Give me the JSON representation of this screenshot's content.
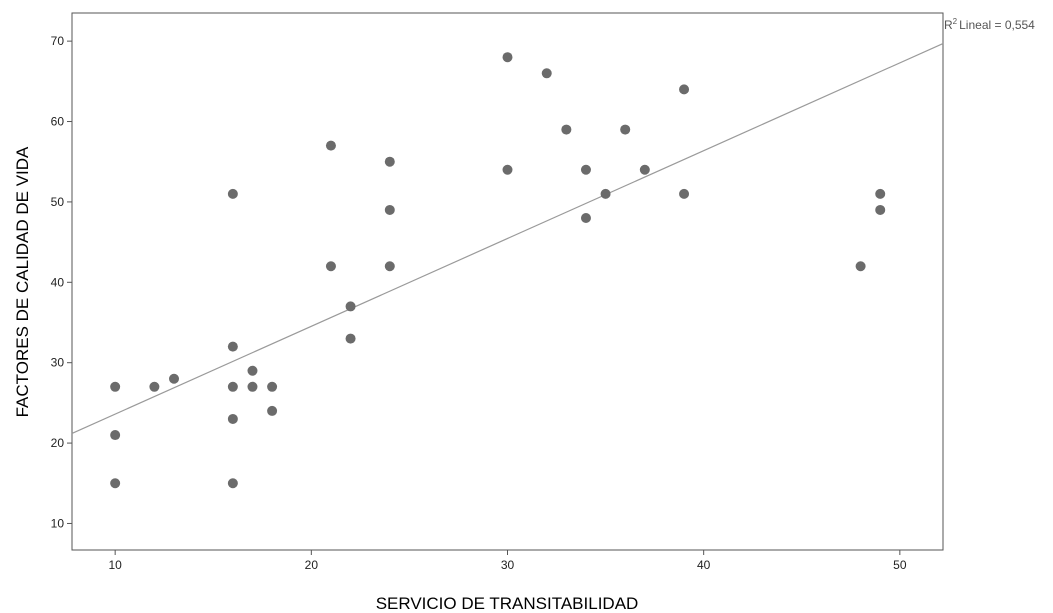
{
  "chart_data": {
    "type": "scatter",
    "xlabel": "SERVICIO DE TRANSITABILIDAD",
    "ylabel": "FACTORES DE CALIDAD DE VIDA",
    "xlim": [
      7.8,
      52.2
    ],
    "ylim": [
      6.7,
      73.5
    ],
    "x_ticks": [
      10,
      20,
      30,
      40,
      50
    ],
    "y_ticks": [
      10,
      20,
      30,
      40,
      50,
      60,
      70
    ],
    "grid": false,
    "points": [
      [
        10,
        27
      ],
      [
        10,
        21
      ],
      [
        10,
        15
      ],
      [
        12,
        27
      ],
      [
        13,
        28
      ],
      [
        16,
        51
      ],
      [
        16,
        32
      ],
      [
        16,
        27
      ],
      [
        16,
        23
      ],
      [
        16,
        15
      ],
      [
        17,
        29
      ],
      [
        17,
        27
      ],
      [
        18,
        27
      ],
      [
        18,
        24
      ],
      [
        21,
        57
      ],
      [
        21,
        42
      ],
      [
        22,
        37
      ],
      [
        22,
        33
      ],
      [
        24,
        55
      ],
      [
        24,
        49
      ],
      [
        24,
        42
      ],
      [
        30,
        68
      ],
      [
        30,
        54
      ],
      [
        32,
        66
      ],
      [
        33,
        59
      ],
      [
        34,
        54
      ],
      [
        34,
        48
      ],
      [
        35,
        51
      ],
      [
        36,
        59
      ],
      [
        37,
        54
      ],
      [
        39,
        64
      ],
      [
        39,
        51
      ],
      [
        48,
        42
      ],
      [
        49,
        51
      ],
      [
        49,
        49
      ]
    ],
    "fit_line": {
      "type": "linear",
      "start": [
        7.8,
        21.2
      ],
      "end": [
        52.2,
        69.7
      ],
      "r2_label": "Lineal = 0,554",
      "r2_prefix": "R",
      "r2_sup": "2"
    },
    "colors": {
      "marker": "#6b6b6b",
      "fit_line": "#9a9a9a",
      "frame": "#555555"
    }
  }
}
